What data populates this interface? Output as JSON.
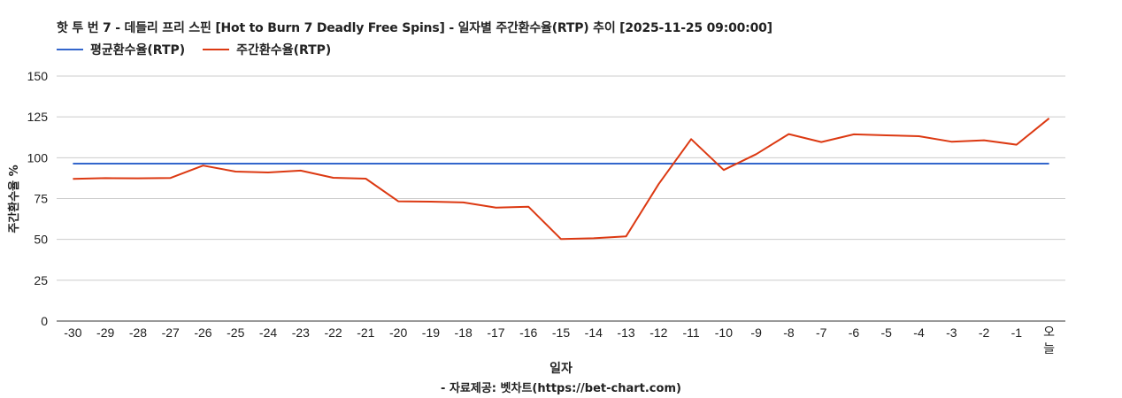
{
  "chart_data": {
    "type": "line",
    "title": "핫 투 번 7 - 데들리 프리 스핀 [Hot to Burn 7 Deadly Free Spins] - 일자별 주간환수율(RTP) 추이 [2025-11-25 09:00:00]",
    "xlabel": "일자",
    "ylabel": "주간환수율 %",
    "source": "- 자료제공: 벳차트(https://bet-chart.com)",
    "ylim": [
      0,
      150
    ],
    "yticks": [
      0,
      25,
      50,
      75,
      100,
      125,
      150
    ],
    "grid": true,
    "legend_position": "top-left",
    "categories": [
      "-30",
      "-29",
      "-28",
      "-27",
      "-26",
      "-25",
      "-24",
      "-23",
      "-22",
      "-21",
      "-20",
      "-19",
      "-18",
      "-17",
      "-16",
      "-15",
      "-14",
      "-13",
      "-12",
      "-11",
      "-10",
      "-9",
      "-8",
      "-7",
      "-6",
      "-5",
      "-4",
      "-3",
      "-2",
      "-1",
      "오늘"
    ],
    "series": [
      {
        "name": "평균환수율(RTP)",
        "color": "#3366cc",
        "values": [
          96.4,
          96.4,
          96.4,
          96.4,
          96.4,
          96.4,
          96.4,
          96.4,
          96.4,
          96.4,
          96.4,
          96.4,
          96.4,
          96.4,
          96.4,
          96.4,
          96.4,
          96.4,
          96.4,
          96.4,
          96.4,
          96.4,
          96.4,
          96.4,
          96.4,
          96.4,
          96.4,
          96.4,
          96.4,
          96.4,
          96.4
        ]
      },
      {
        "name": "주간환수율(RTP)",
        "color": "#dc3912",
        "values": [
          87.0,
          87.5,
          87.4,
          87.6,
          95.2,
          91.5,
          91.0,
          92.1,
          87.7,
          87.2,
          73.3,
          73.1,
          72.6,
          69.5,
          70.0,
          50.2,
          50.7,
          51.8,
          83.8,
          111.4,
          92.5,
          102.2,
          114.5,
          109.6,
          114.3,
          113.7,
          113.2,
          109.8,
          110.7,
          108.0,
          124.1
        ]
      }
    ]
  }
}
